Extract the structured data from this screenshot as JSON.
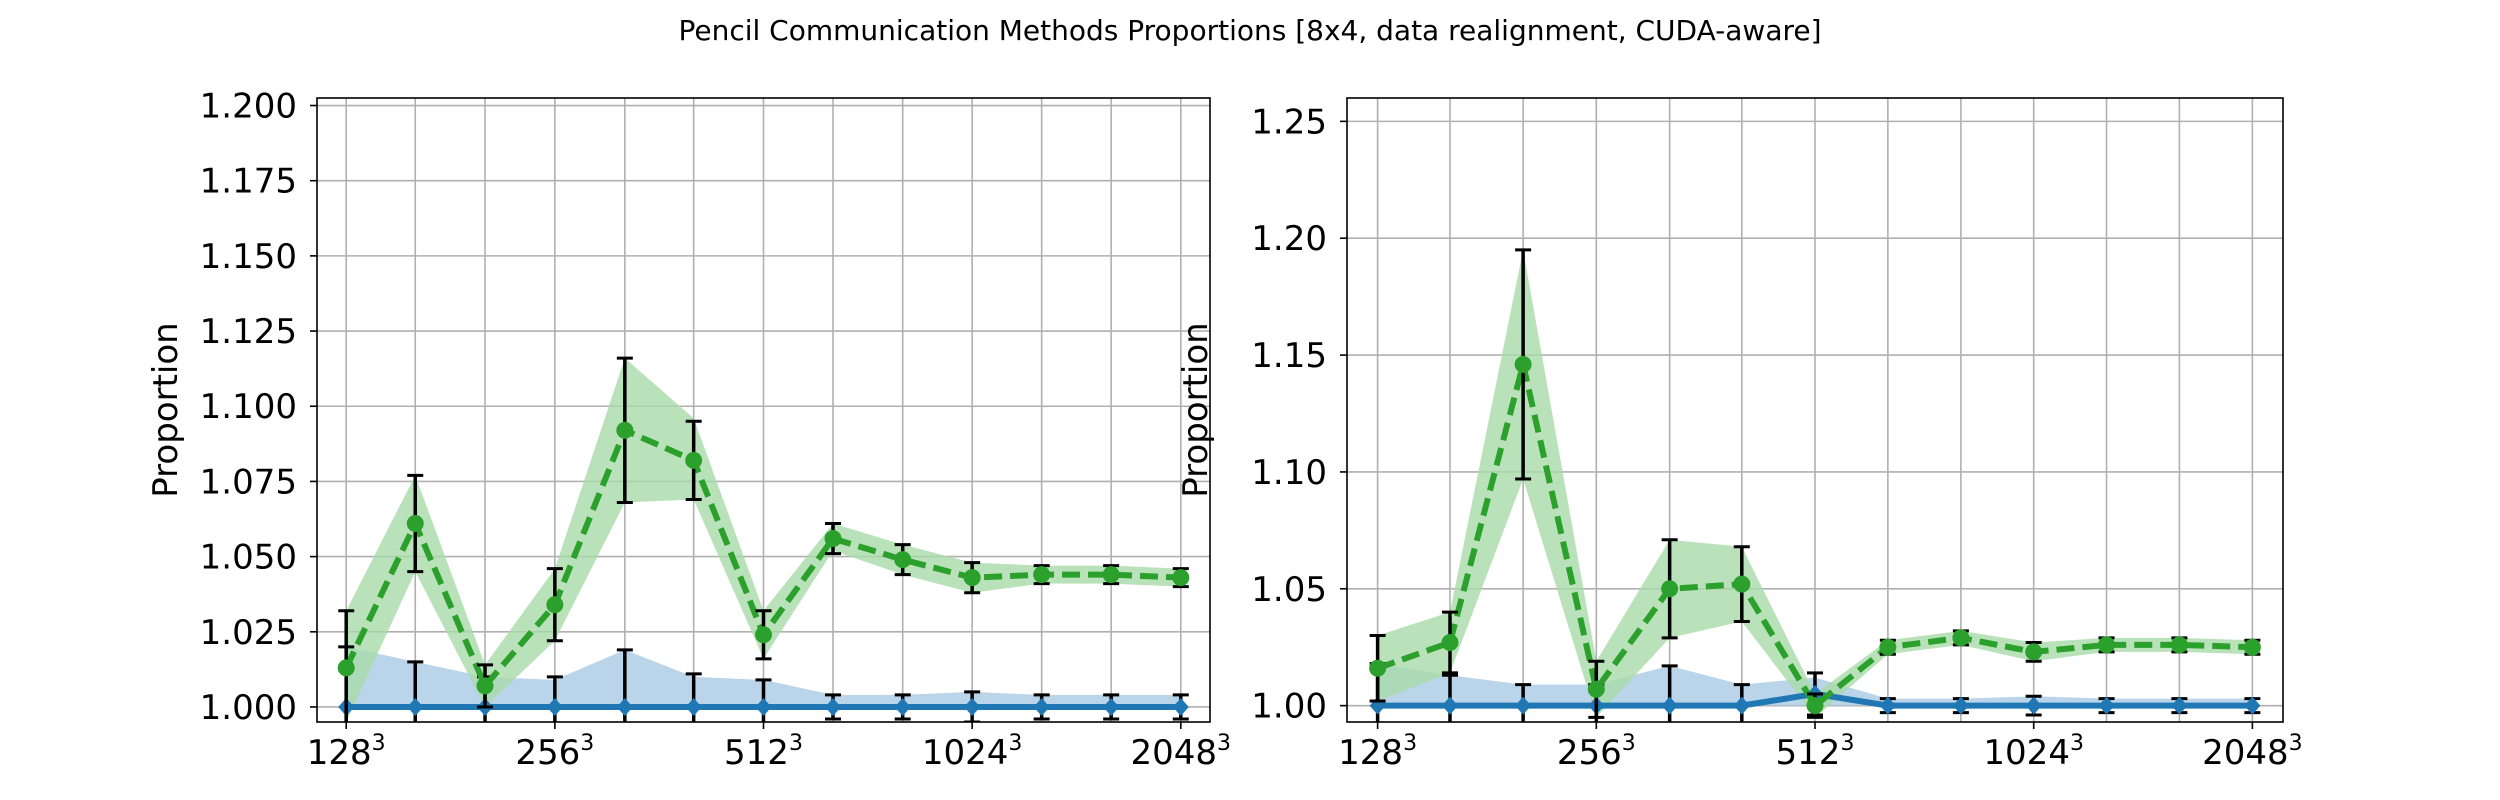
{
  "title": "Pencil Communication Methods Proportions [8x4, data realignment, CUDA-aware]",
  "colors": {
    "series_a": "#1f77b4",
    "series_a_band": "#a9c9e5",
    "series_b": "#2ca02c",
    "series_b_band": "#a9dba9",
    "error_bar": "#000000",
    "grid": "#b0b0b0"
  },
  "chart_data": [
    {
      "type": "line",
      "ylabel": "Proportion",
      "xlabel": "",
      "grid": true,
      "ylim": [
        0.995,
        1.2025
      ],
      "yticks": [
        "1.000",
        "1.025",
        "1.050",
        "1.075",
        "1.100",
        "1.125",
        "1.150",
        "1.175",
        "1.200"
      ],
      "ytick_values": [
        1.0,
        1.025,
        1.05,
        1.075,
        1.1,
        1.125,
        1.15,
        1.175,
        1.2
      ],
      "x_positions": [
        128,
        161,
        203,
        256,
        323,
        406,
        512,
        645,
        813,
        1024,
        1290,
        1625,
        2048
      ],
      "xtick_labels": [
        {
          "value": 128,
          "base": "128",
          "exp": "3"
        },
        {
          "value": 256,
          "base": "256",
          "exp": "3"
        },
        {
          "value": 512,
          "base": "512",
          "exp": "3"
        },
        {
          "value": 1024,
          "base": "1024",
          "exp": "3"
        },
        {
          "value": 2048,
          "base": "2048",
          "exp": "3"
        }
      ],
      "series": [
        {
          "key": "a",
          "values": [
            1.0,
            1.0,
            1.0,
            1.0,
            1.0,
            1.0,
            1.0,
            1.0,
            1.0,
            1.0,
            1.0,
            1.0,
            1.0
          ],
          "err": [
            0.02,
            0.015,
            0.01,
            0.01,
            0.019,
            0.011,
            0.009,
            0.004,
            0.004,
            0.005,
            0.004,
            0.004,
            0.004
          ],
          "band_low": [
            1.0,
            1.0,
            1.0,
            1.0,
            1.0,
            1.0,
            1.0,
            1.0,
            1.0,
            1.0,
            1.0,
            1.0,
            1.0
          ],
          "band_high": [
            1.02,
            1.015,
            1.01,
            1.009,
            1.019,
            1.01,
            1.009,
            1.004,
            1.004,
            1.005,
            1.004,
            1.004,
            1.004
          ]
        },
        {
          "key": "b",
          "values": [
            1.013,
            1.061,
            1.007,
            1.034,
            1.092,
            1.082,
            1.024,
            1.056,
            1.049,
            1.043,
            1.044,
            1.044,
            1.043
          ],
          "err": [
            0.019,
            0.016,
            0.007,
            0.012,
            0.024,
            0.013,
            0.008,
            0.005,
            0.005,
            0.005,
            0.003,
            0.003,
            0.003
          ],
          "band_low": [
            0.995,
            1.045,
            1.0,
            1.022,
            1.068,
            1.069,
            1.016,
            1.052,
            1.044,
            1.038,
            1.041,
            1.041,
            1.04
          ],
          "band_high": [
            1.032,
            1.077,
            1.014,
            1.046,
            1.116,
            1.096,
            1.032,
            1.061,
            1.054,
            1.048,
            1.047,
            1.047,
            1.046
          ]
        }
      ]
    },
    {
      "type": "line",
      "ylabel": "Proportion",
      "xlabel": "",
      "grid": true,
      "ylim": [
        0.993,
        1.26
      ],
      "yticks": [
        "1.00",
        "1.05",
        "1.10",
        "1.15",
        "1.20",
        "1.25"
      ],
      "ytick_values": [
        1.0,
        1.05,
        1.1,
        1.15,
        1.2,
        1.25
      ],
      "x_positions": [
        128,
        161,
        203,
        256,
        323,
        406,
        512,
        645,
        813,
        1024,
        1290,
        1625,
        2048
      ],
      "xtick_labels": [
        {
          "value": 128,
          "base": "128",
          "exp": "3"
        },
        {
          "value": 256,
          "base": "256",
          "exp": "3"
        },
        {
          "value": 512,
          "base": "512",
          "exp": "3"
        },
        {
          "value": 1024,
          "base": "1024",
          "exp": "3"
        },
        {
          "value": 2048,
          "base": "2048",
          "exp": "3"
        }
      ],
      "series": [
        {
          "key": "a",
          "values": [
            1.0,
            1.0,
            1.0,
            1.0,
            1.0,
            1.0,
            1.005,
            1.0,
            1.0,
            1.0,
            1.0,
            1.0,
            1.0
          ],
          "err": [
            0.018,
            0.013,
            0.009,
            0.009,
            0.017,
            0.009,
            0.009,
            0.003,
            0.003,
            0.004,
            0.003,
            0.003,
            0.003
          ],
          "band_low": [
            1.0,
            1.0,
            1.0,
            1.0,
            1.0,
            1.0,
            1.0,
            1.0,
            1.0,
            1.0,
            1.0,
            1.0,
            1.0
          ],
          "band_high": [
            1.018,
            1.013,
            1.009,
            1.009,
            1.017,
            1.009,
            1.012,
            1.003,
            1.003,
            1.004,
            1.003,
            1.003,
            1.003
          ]
        },
        {
          "key": "b",
          "values": [
            1.016,
            1.027,
            1.146,
            1.007,
            1.05,
            1.052,
            1.0,
            1.025,
            1.029,
            1.023,
            1.026,
            1.026,
            1.025
          ],
          "err": [
            0.014,
            0.013,
            0.049,
            0.012,
            0.021,
            0.016,
            0.005,
            0.003,
            0.003,
            0.004,
            0.003,
            0.003,
            0.003
          ],
          "band_low": [
            1.002,
            1.014,
            1.097,
            0.995,
            1.029,
            1.036,
            0.995,
            1.022,
            1.026,
            1.019,
            1.023,
            1.023,
            1.022
          ],
          "band_high": [
            1.03,
            1.04,
            1.195,
            1.019,
            1.071,
            1.068,
            1.005,
            1.028,
            1.032,
            1.027,
            1.029,
            1.029,
            1.028
          ]
        }
      ]
    }
  ]
}
